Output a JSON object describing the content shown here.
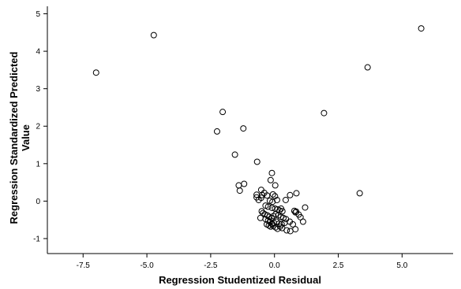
{
  "chart_data": {
    "type": "scatter",
    "title": "",
    "xlabel": "Regression Studentized Residual",
    "ylabel_lines": [
      "Regression Standardized Predicted",
      "Value"
    ],
    "xlim": [
      -8.9,
      7.0
    ],
    "ylim": [
      -1.4,
      5.2
    ],
    "xticks": [
      -7.5,
      -5.0,
      -2.5,
      0.0,
      2.5,
      5.0
    ],
    "xtick_labels": [
      "-7.5",
      "-5.0",
      "-2.5",
      "0.0",
      "2.5",
      "5.0"
    ],
    "yticks": [
      -1,
      0,
      1,
      2,
      3,
      4,
      5
    ],
    "ytick_labels": [
      "-1",
      "0",
      "1",
      "2",
      "3",
      "4",
      "5"
    ],
    "grid": false,
    "marker": "open-circle",
    "marker_color": "#000000",
    "points": [
      [
        -6.99,
        3.43
      ],
      [
        -4.73,
        4.43
      ],
      [
        5.75,
        4.61
      ],
      [
        3.65,
        3.57
      ],
      [
        -2.03,
        2.38
      ],
      [
        -2.25,
        1.86
      ],
      [
        -1.22,
        1.94
      ],
      [
        1.94,
        2.35
      ],
      [
        -1.55,
        1.24
      ],
      [
        -0.68,
        1.05
      ],
      [
        -0.1,
        0.75
      ],
      [
        3.34,
        0.21
      ],
      [
        -1.4,
        0.42
      ],
      [
        -1.19,
        0.46
      ],
      [
        -1.36,
        0.28
      ],
      [
        -0.15,
        0.56
      ],
      [
        0.03,
        0.42
      ],
      [
        0.86,
        0.21
      ],
      [
        0.61,
        0.16
      ],
      [
        -0.4,
        0.22
      ],
      [
        -0.7,
        0.17
      ],
      [
        -0.52,
        0.3
      ],
      [
        -0.48,
        0.16
      ],
      [
        -0.29,
        0.15
      ],
      [
        -0.06,
        0.18
      ],
      [
        0.02,
        0.13
      ],
      [
        -0.7,
        0.1
      ],
      [
        -0.62,
        0.03
      ],
      [
        -0.52,
        0.09
      ],
      [
        -0.18,
        0.01
      ],
      [
        -0.08,
        -0.02
      ],
      [
        0.1,
        0.03
      ],
      [
        0.44,
        0.03
      ],
      [
        1.2,
        -0.17
      ],
      [
        -0.35,
        -0.12
      ],
      [
        -0.25,
        -0.15
      ],
      [
        -0.1,
        -0.18
      ],
      [
        0.02,
        -0.2
      ],
      [
        0.12,
        -0.22
      ],
      [
        0.2,
        -0.25
      ],
      [
        0.26,
        -0.2
      ],
      [
        0.31,
        -0.27
      ],
      [
        0.78,
        -0.26
      ],
      [
        0.82,
        -0.3
      ],
      [
        0.85,
        -0.28
      ],
      [
        -0.5,
        -0.27
      ],
      [
        -0.45,
        -0.32
      ],
      [
        -0.38,
        -0.35
      ],
      [
        -0.28,
        -0.38
      ],
      [
        -0.2,
        -0.42
      ],
      [
        -0.12,
        -0.45
      ],
      [
        -0.04,
        -0.4
      ],
      [
        0.05,
        -0.35
      ],
      [
        0.15,
        -0.38
      ],
      [
        0.25,
        -0.42
      ],
      [
        0.35,
        -0.45
      ],
      [
        0.45,
        -0.48
      ],
      [
        0.95,
        -0.36
      ],
      [
        1.02,
        -0.43
      ],
      [
        1.12,
        -0.55
      ],
      [
        -0.55,
        -0.45
      ],
      [
        -0.35,
        -0.48
      ],
      [
        -0.25,
        -0.52
      ],
      [
        -0.18,
        -0.55
      ],
      [
        -0.1,
        -0.6
      ],
      [
        -0.02,
        -0.58
      ],
      [
        0.08,
        -0.55
      ],
      [
        0.18,
        -0.6
      ],
      [
        0.28,
        -0.62
      ],
      [
        0.4,
        -0.58
      ],
      [
        0.6,
        -0.55
      ],
      [
        0.72,
        -0.62
      ],
      [
        -0.3,
        -0.62
      ],
      [
        -0.22,
        -0.65
      ],
      [
        -0.15,
        -0.68
      ],
      [
        -0.05,
        -0.66
      ],
      [
        0.04,
        -0.7
      ],
      [
        0.12,
        -0.74
      ],
      [
        0.3,
        -0.72
      ],
      [
        0.48,
        -0.78
      ],
      [
        0.62,
        -0.8
      ],
      [
        0.82,
        -0.75
      ],
      [
        -0.08,
        -0.62
      ],
      [
        0.22,
        -0.68
      ]
    ]
  }
}
